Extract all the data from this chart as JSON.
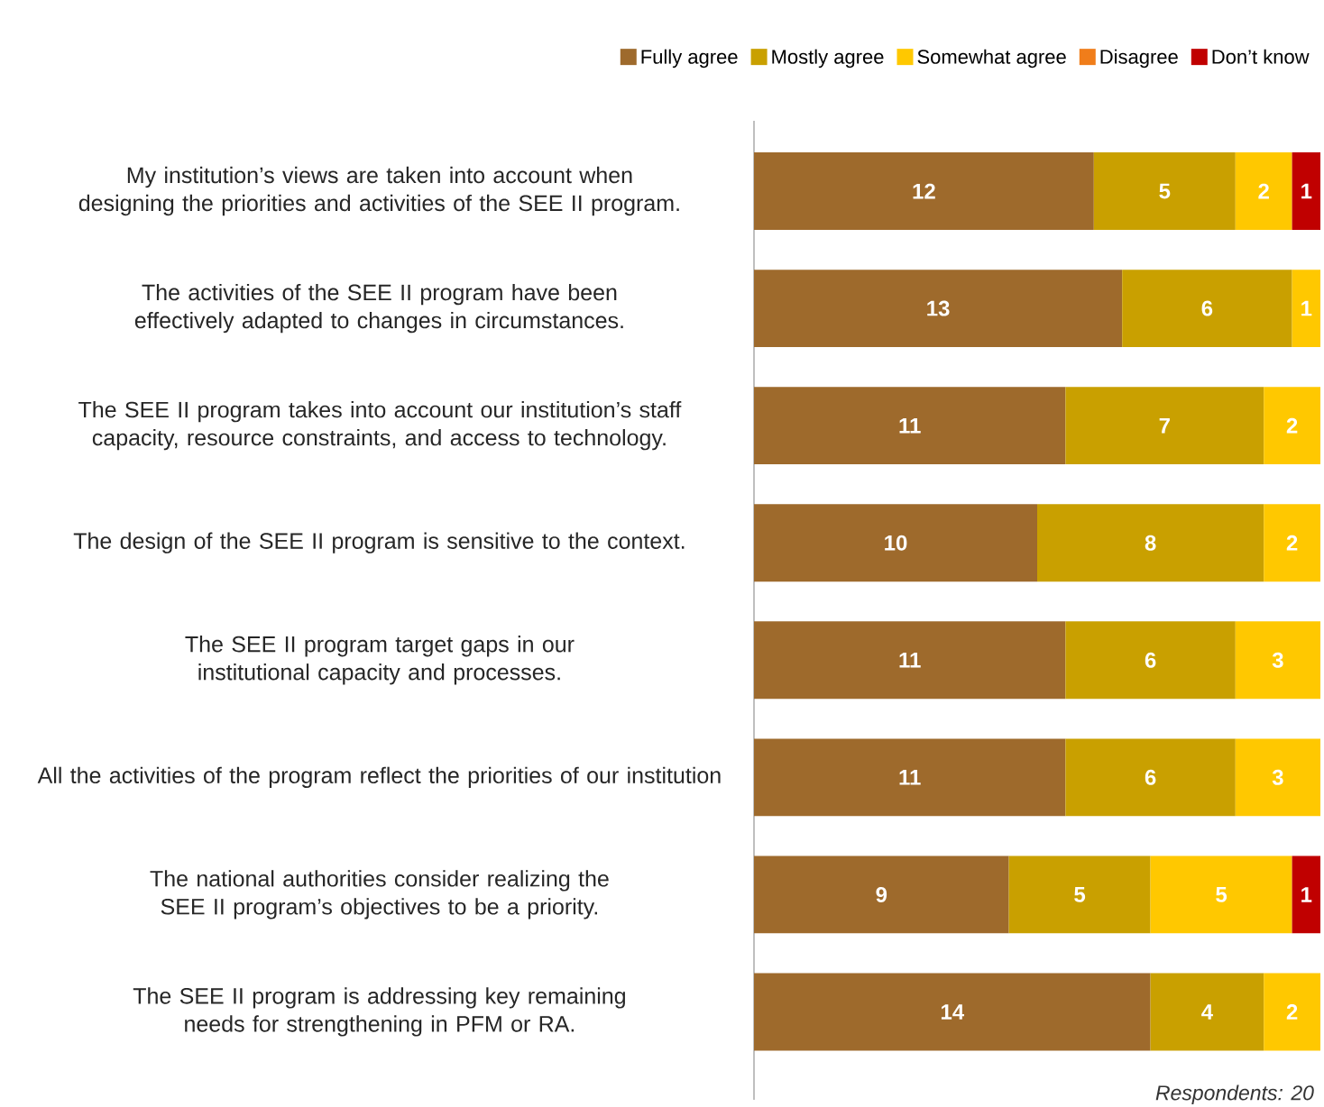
{
  "chart_data": {
    "type": "bar",
    "orientation": "horizontal",
    "stacked": true,
    "data_labels": true,
    "legend": "top",
    "xlim": [
      0,
      20
    ],
    "categories": [
      "My institution’s views are taken into account when designing the priorities and activities of the SEE II program.",
      "The activities of the SEE II program have been effectively adapted to changes in circumstances.",
      "The SEE II program takes into account our institution’s staff capacity, resource constraints, and access to technology.",
      "The design of the SEE II program is sensitive to the context.",
      "The SEE II program target gaps in our institutional capacity and processes.",
      "All the activities of the program reflect the priorities of our institution",
      "The national authorities consider realizing the SEE II program’s objectives to be a priority.",
      "The SEE II program is addressing key remaining needs for strengthening in PFM or RA."
    ],
    "series": [
      {
        "name": "Fully agree",
        "color": "#9e6a2c",
        "values": [
          12,
          13,
          11,
          10,
          11,
          11,
          9,
          14
        ]
      },
      {
        "name": "Mostly agree",
        "color": "#c9a000",
        "values": [
          5,
          6,
          7,
          8,
          6,
          6,
          5,
          4
        ]
      },
      {
        "name": "Somewhat agree",
        "color": "#ffc800",
        "values": [
          2,
          1,
          2,
          2,
          3,
          3,
          5,
          2
        ]
      },
      {
        "name": "Disagree",
        "color": "#f07d1a",
        "values": [
          null,
          null,
          null,
          null,
          null,
          null,
          null,
          null
        ]
      },
      {
        "name": "Don’t know",
        "color": "#c00000",
        "values": [
          1,
          null,
          null,
          null,
          null,
          null,
          1,
          null
        ]
      }
    ],
    "annotations": [
      "Respondents: 20"
    ]
  }
}
